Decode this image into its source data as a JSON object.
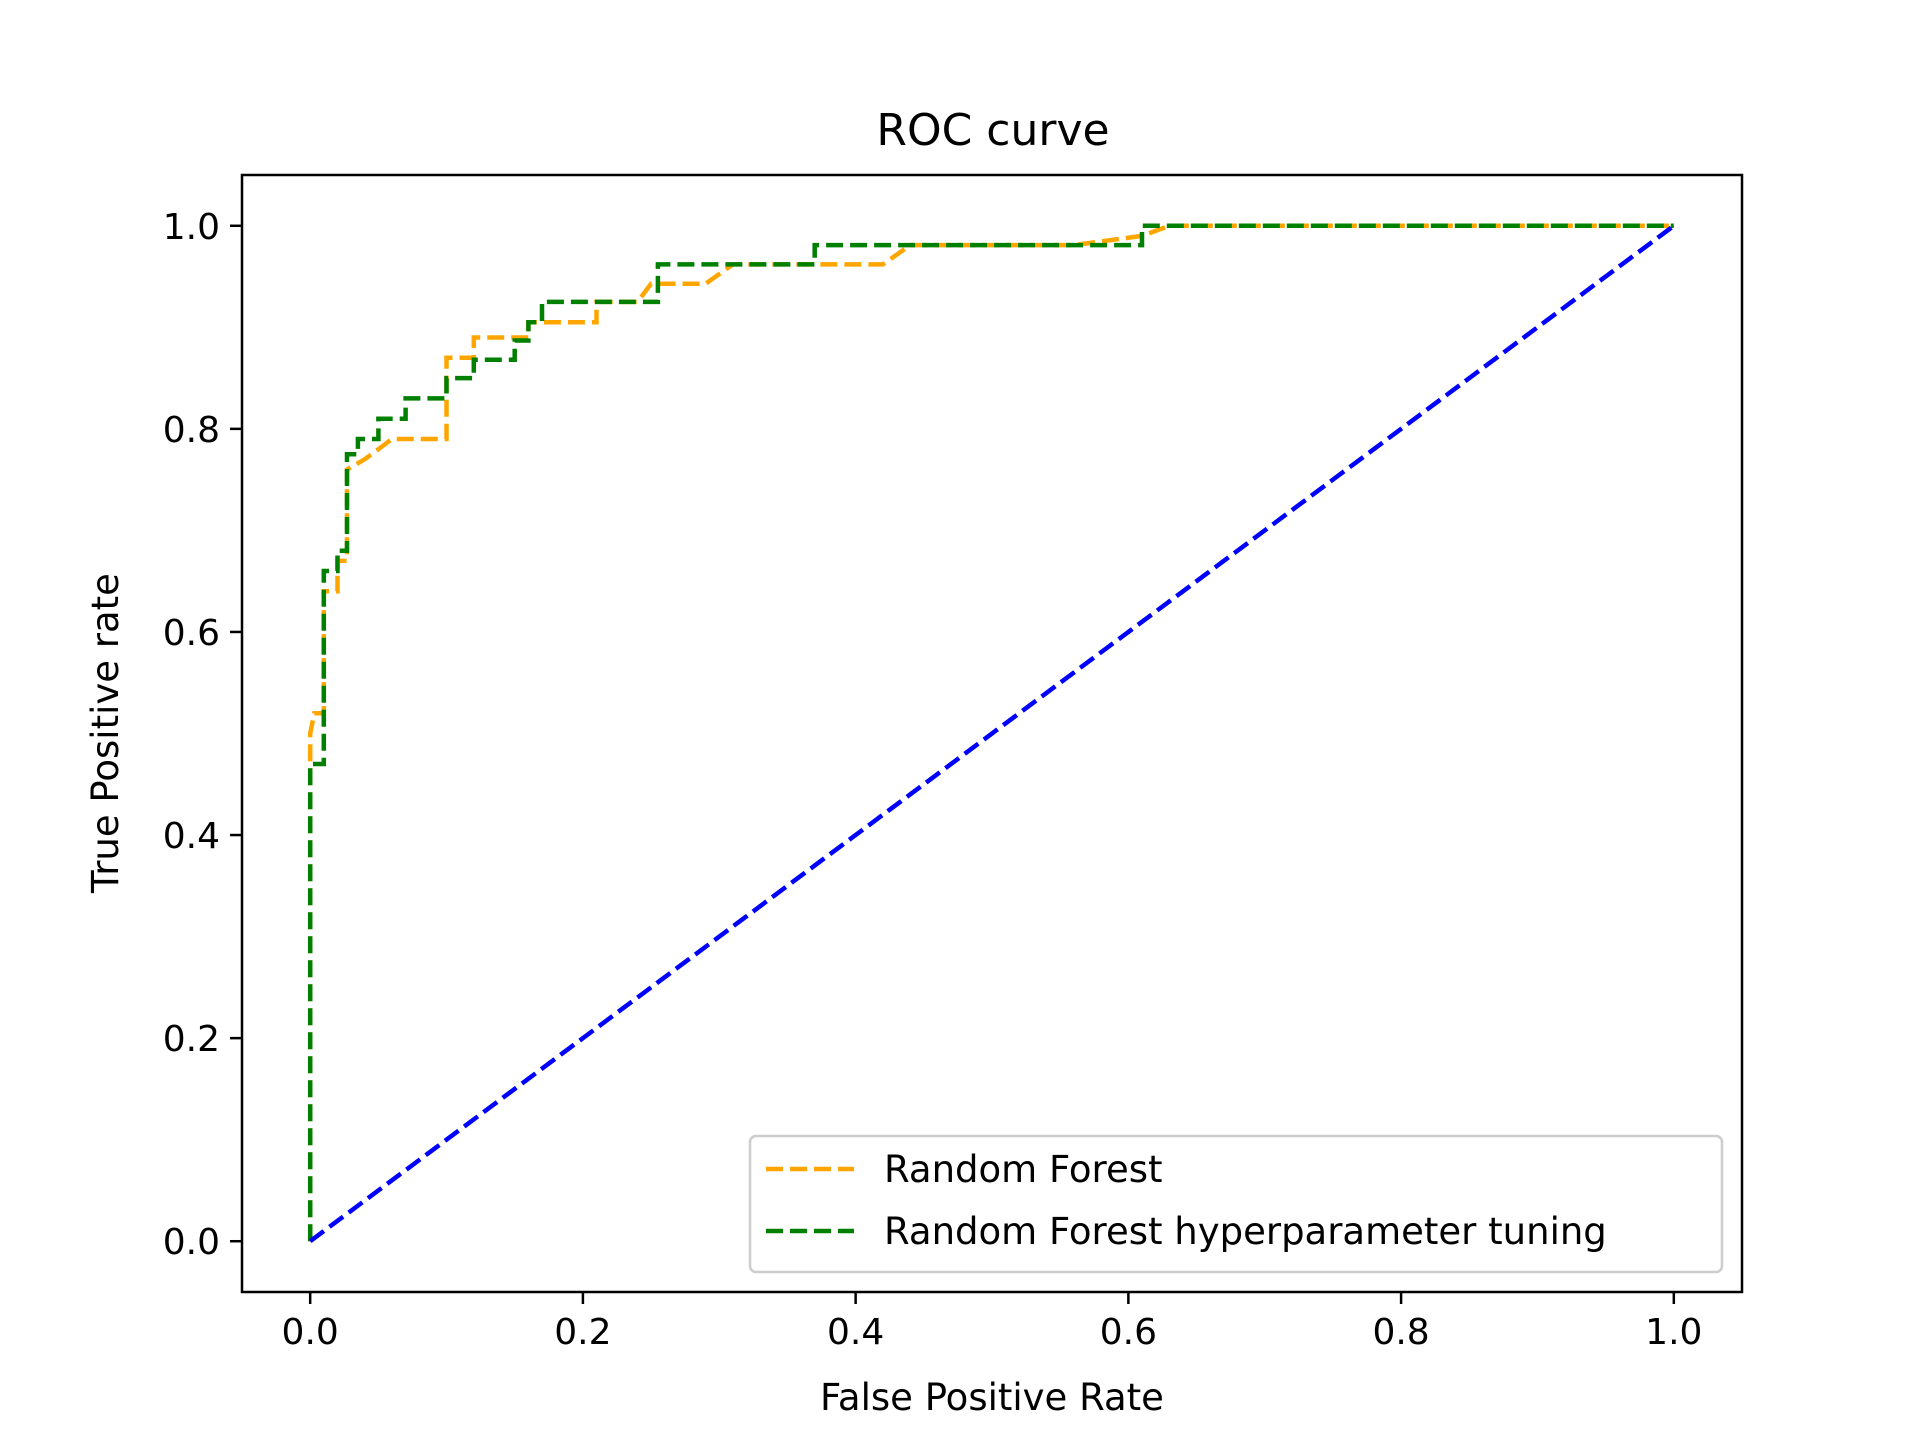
{
  "chart_data": {
    "type": "line",
    "title": "ROC curve",
    "xlabel": "False Positive Rate",
    "ylabel": "True Positive rate",
    "xlim": [
      -0.05,
      1.05
    ],
    "ylim": [
      -0.05,
      1.05
    ],
    "xticks": [
      "0.0",
      "0.2",
      "0.4",
      "0.6",
      "0.8",
      "1.0"
    ],
    "yticks": [
      "0.0",
      "0.2",
      "0.4",
      "0.6",
      "0.8",
      "1.0"
    ],
    "grid": false,
    "legend_position": "lower-right",
    "series": [
      {
        "name": "Random Forest",
        "color": "#ffa500",
        "dash": "dashed",
        "points": [
          [
            0,
            0
          ],
          [
            0,
            0.5
          ],
          [
            0.003,
            0.52
          ],
          [
            0.01,
            0.52
          ],
          [
            0.01,
            0.64
          ],
          [
            0.02,
            0.64
          ],
          [
            0.02,
            0.67
          ],
          [
            0.027,
            0.67
          ],
          [
            0.027,
            0.76
          ],
          [
            0.04,
            0.77
          ],
          [
            0.05,
            0.78
          ],
          [
            0.06,
            0.79
          ],
          [
            0.1,
            0.79
          ],
          [
            0.1,
            0.87
          ],
          [
            0.12,
            0.87
          ],
          [
            0.12,
            0.89
          ],
          [
            0.16,
            0.89
          ],
          [
            0.16,
            0.905
          ],
          [
            0.21,
            0.905
          ],
          [
            0.21,
            0.925
          ],
          [
            0.24,
            0.925
          ],
          [
            0.25,
            0.943
          ],
          [
            0.29,
            0.943
          ],
          [
            0.31,
            0.962
          ],
          [
            0.42,
            0.962
          ],
          [
            0.44,
            0.981
          ],
          [
            0.56,
            0.981
          ],
          [
            0.61,
            0.99
          ],
          [
            0.63,
            1.0
          ],
          [
            1.0,
            1.0
          ]
        ]
      },
      {
        "name": "Random Forest hyperparameter tuning",
        "color": "#008000",
        "dash": "dashed",
        "points": [
          [
            0,
            0
          ],
          [
            0,
            0.47
          ],
          [
            0.01,
            0.47
          ],
          [
            0.01,
            0.66
          ],
          [
            0.02,
            0.66
          ],
          [
            0.02,
            0.68
          ],
          [
            0.027,
            0.68
          ],
          [
            0.027,
            0.775
          ],
          [
            0.035,
            0.775
          ],
          [
            0.035,
            0.79
          ],
          [
            0.05,
            0.79
          ],
          [
            0.05,
            0.81
          ],
          [
            0.07,
            0.81
          ],
          [
            0.07,
            0.83
          ],
          [
            0.1,
            0.83
          ],
          [
            0.1,
            0.85
          ],
          [
            0.12,
            0.85
          ],
          [
            0.12,
            0.868
          ],
          [
            0.15,
            0.868
          ],
          [
            0.15,
            0.887
          ],
          [
            0.16,
            0.887
          ],
          [
            0.16,
            0.905
          ],
          [
            0.17,
            0.905
          ],
          [
            0.17,
            0.925
          ],
          [
            0.255,
            0.925
          ],
          [
            0.255,
            0.962
          ],
          [
            0.37,
            0.962
          ],
          [
            0.37,
            0.981
          ],
          [
            0.61,
            0.981
          ],
          [
            0.61,
            1.0
          ],
          [
            1.0,
            1.0
          ]
        ]
      },
      {
        "name": "",
        "color": "#0000ff",
        "dash": "dashed",
        "points": [
          [
            0,
            0
          ],
          [
            1,
            1
          ]
        ]
      }
    ]
  }
}
